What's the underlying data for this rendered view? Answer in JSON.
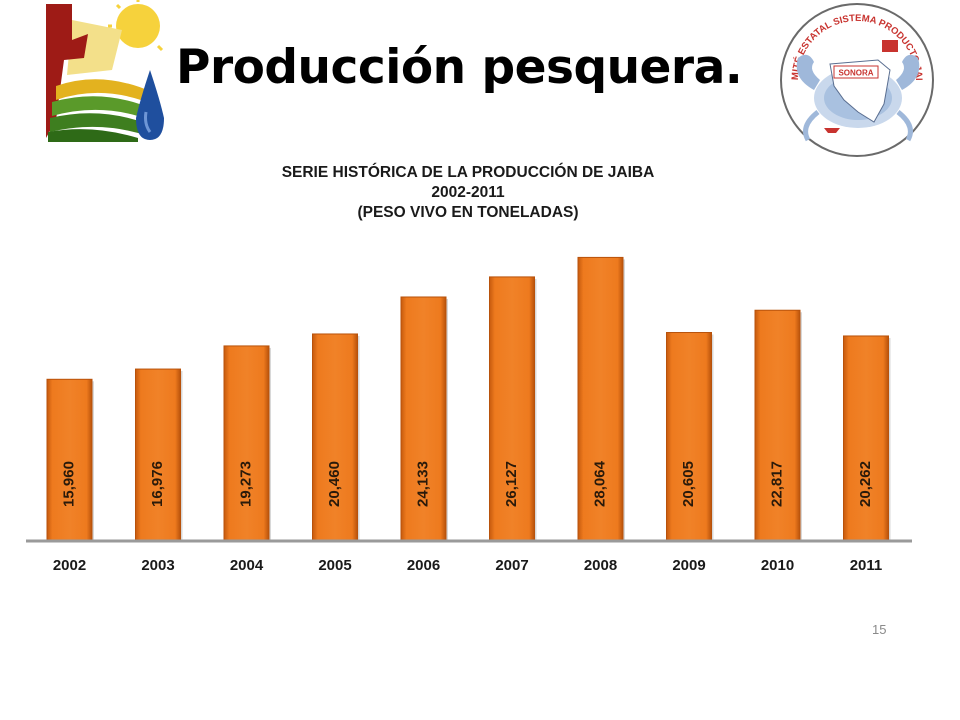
{
  "slide": {
    "title": "Producción pesquera.",
    "page_number": "15"
  },
  "logos": {
    "left_icon": "sun-field-water-logo",
    "right_icon": "crab-sonora-seal",
    "right_seal_text": "COMITÉ ESTATAL SISTEMA PRODUCTO JAIBA",
    "right_seal_region": "SONORA"
  },
  "colors": {
    "bar_fill": "#E8731A",
    "bar_dark": "#B8520B",
    "baseline": "#9a9a9a"
  },
  "chart_data": {
    "type": "bar",
    "title_lines": [
      "SERIE HISTÓRICA DE LA PRODUCCIÓN DE JAIBA",
      "2002-2011",
      "(PESO VIVO EN TONELADAS)"
    ],
    "categories": [
      "2002",
      "2003",
      "2004",
      "2005",
      "2006",
      "2007",
      "2008",
      "2009",
      "2010",
      "2011"
    ],
    "values": [
      15960,
      16976,
      19273,
      20460,
      24133,
      26127,
      28064,
      20605,
      22817,
      20262
    ],
    "value_labels": [
      "15,960",
      "16,976",
      "19,273",
      "20,460",
      "24,133",
      "26,127",
      "28,064",
      "20,605",
      "22,817",
      "20,262"
    ],
    "ylim": [
      0,
      28700
    ],
    "grid": false,
    "legend": "none",
    "xlabel": "",
    "ylabel": ""
  }
}
